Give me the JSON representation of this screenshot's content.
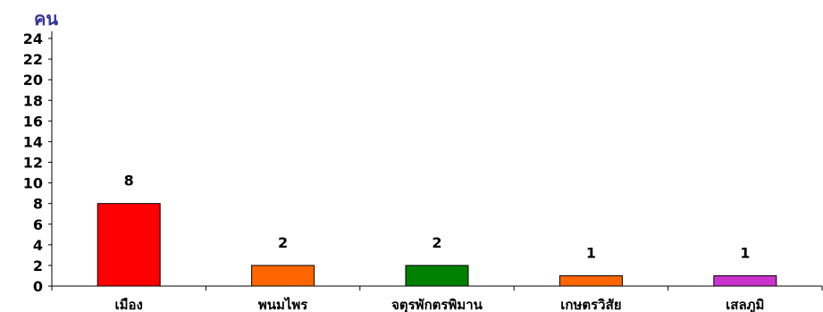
{
  "chart_data": {
    "type": "bar",
    "ylabel": "คน",
    "categories": [
      "เมือง",
      "พนมไพร",
      "จตุรพักตรพิมาน",
      "เกษตรวิสัย",
      "เสลภูมิ"
    ],
    "values": [
      8,
      2,
      2,
      1,
      1
    ],
    "colors": [
      "#ff0000",
      "#ff6600",
      "#008000",
      "#ff6600",
      "#cc33cc"
    ],
    "ylim": [
      0,
      24
    ],
    "yticks": [
      0,
      2,
      4,
      6,
      8,
      10,
      12,
      14,
      16,
      18,
      20,
      22,
      24
    ],
    "grid": false,
    "legend": "none"
  }
}
